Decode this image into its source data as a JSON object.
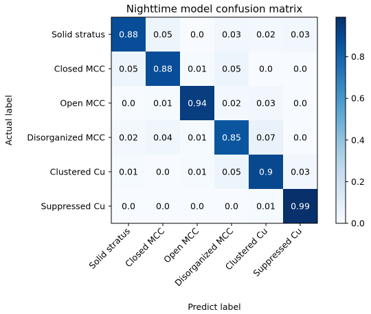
{
  "chart_data": {
    "type": "heatmap",
    "title": "Nighttime model confusion matrix",
    "xlabel": "Predict label",
    "ylabel": "Actual label",
    "categories": [
      "Solid stratus",
      "Closed MCC",
      "Open MCC",
      "Disorganized MCC",
      "Clustered Cu",
      "Suppressed Cu"
    ],
    "matrix": [
      [
        0.88,
        0.05,
        0.0,
        0.03,
        0.02,
        0.03
      ],
      [
        0.05,
        0.88,
        0.01,
        0.05,
        0.0,
        0.0
      ],
      [
        0.0,
        0.01,
        0.94,
        0.02,
        0.03,
        0.0
      ],
      [
        0.02,
        0.04,
        0.01,
        0.85,
        0.07,
        0.0
      ],
      [
        0.01,
        0.0,
        0.01,
        0.05,
        0.9,
        0.03
      ],
      [
        0.0,
        0.0,
        0.0,
        0.0,
        0.01,
        0.99
      ]
    ],
    "cell_labels": [
      [
        "0.88",
        "0.05",
        "0.0",
        "0.03",
        "0.02",
        "0.03"
      ],
      [
        "0.05",
        "0.88",
        "0.01",
        "0.05",
        "0.0",
        "0.0"
      ],
      [
        "0.0",
        "0.01",
        "0.94",
        "0.02",
        "0.03",
        "0.0"
      ],
      [
        "0.02",
        "0.04",
        "0.01",
        "0.85",
        "0.07",
        "0.0"
      ],
      [
        "0.01",
        "0.0",
        "0.01",
        "0.05",
        "0.9",
        "0.03"
      ],
      [
        "0.0",
        "0.0",
        "0.0",
        "0.0",
        "0.01",
        "0.99"
      ]
    ],
    "colormap": "Blues",
    "colorbar": {
      "range": [
        0.0,
        0.99
      ],
      "ticks": [
        0.0,
        0.2,
        0.4,
        0.6,
        0.8
      ],
      "tick_labels": [
        "0.0",
        "0.2",
        "0.4",
        "0.6",
        "0.8"
      ]
    },
    "grid": false,
    "colors": {
      "low": "#f7fbff",
      "high": "#08306b",
      "text_dark": "#000000",
      "text_light": "#ffffff"
    }
  }
}
